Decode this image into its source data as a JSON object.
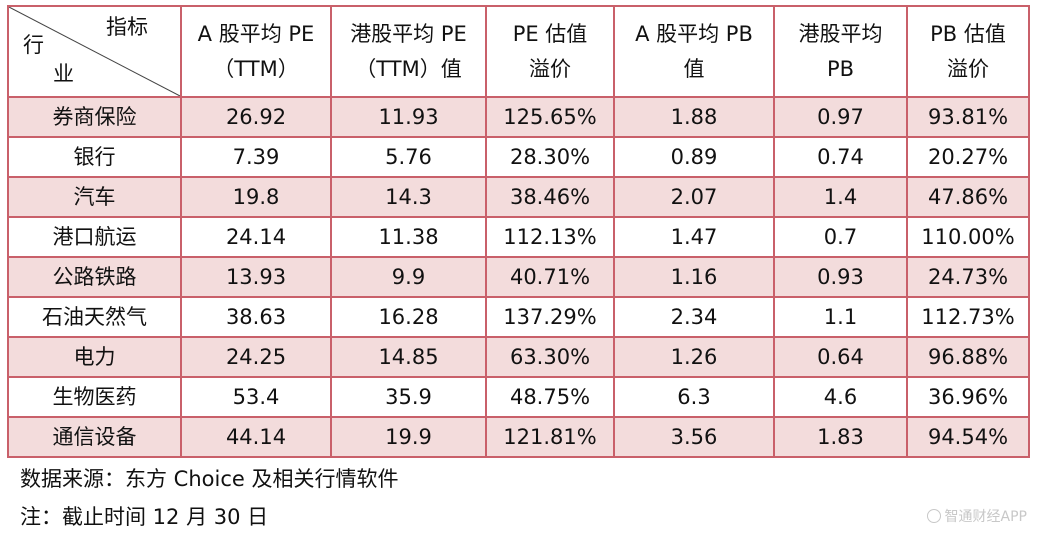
{
  "table": {
    "header": {
      "corner_top": "指标",
      "corner_left_1": "行",
      "corner_left_2": "业",
      "cols": [
        [
          "A 股平均 PE",
          "（TTM）"
        ],
        [
          "港股平均 PE",
          "（TTM）值"
        ],
        [
          "PE 估值",
          "溢价"
        ],
        [
          "A 股平均 PB",
          "值"
        ],
        [
          "港股平均",
          "PB"
        ],
        [
          "PB 估值",
          "溢价"
        ]
      ]
    },
    "rows": [
      [
        "券商保险",
        "26.92",
        "11.93",
        "125.65%",
        "1.88",
        "0.97",
        "93.81%"
      ],
      [
        "银行",
        "7.39",
        "5.76",
        "28.30%",
        "0.89",
        "0.74",
        "20.27%"
      ],
      [
        "汽车",
        "19.8",
        "14.3",
        "38.46%",
        "2.07",
        "1.4",
        "47.86%"
      ],
      [
        "港口航运",
        "24.14",
        "11.38",
        "112.13%",
        "1.47",
        "0.7",
        "110.00%"
      ],
      [
        "公路铁路",
        "13.93",
        "9.9",
        "40.71%",
        "1.16",
        "0.93",
        "24.73%"
      ],
      [
        "石油天然气",
        "38.63",
        "16.28",
        "137.29%",
        "2.34",
        "1.1",
        "112.73%"
      ],
      [
        "电力",
        "24.25",
        "14.85",
        "63.30%",
        "1.26",
        "0.64",
        "96.88%"
      ],
      [
        "生物医药",
        "53.4",
        "35.9",
        "48.75%",
        "6.3",
        "4.6",
        "36.96%"
      ],
      [
        "通信设备",
        "44.14",
        "19.9",
        "121.81%",
        "3.56",
        "1.83",
        "94.54%"
      ]
    ]
  },
  "notes": {
    "source": "数据来源：东方 Choice 及相关行情软件",
    "date": "注：截止时间 12 月 30 日"
  },
  "watermark": {
    "icon": "watermark-logo-icon",
    "text": "智通财经APP"
  },
  "colors": {
    "border": "#c9606a",
    "row_pink": "#f3dcdc"
  }
}
